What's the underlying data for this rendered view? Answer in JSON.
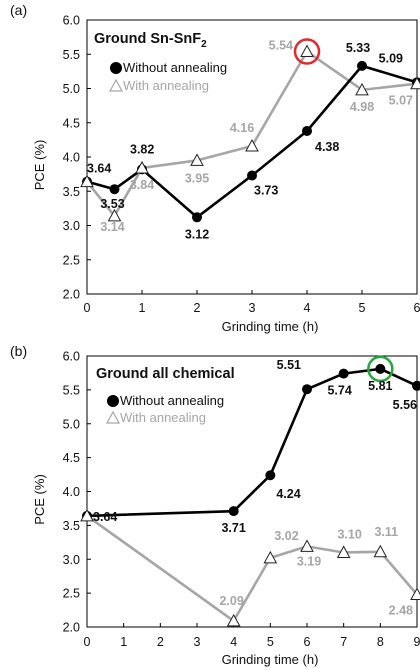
{
  "chart_data": [
    {
      "type": "line",
      "panel_label": "(a)",
      "title_main": "Ground Sn-SnF",
      "title_sub": "2",
      "xlabel": "Grinding time (h)",
      "ylabel": "PCE (%)",
      "xlim": [
        0,
        6
      ],
      "ylim": [
        2.0,
        6.0
      ],
      "xticks": [
        "0",
        "1",
        "2",
        "3",
        "4",
        "5",
        "6"
      ],
      "yticks": [
        "2.0",
        "2.5",
        "3.0",
        "3.5",
        "4.0",
        "4.5",
        "5.0",
        "5.5",
        "6.0"
      ],
      "legend_placement": "top-left",
      "series": [
        {
          "name": "Without annealing",
          "color": "#000000",
          "marker": "circle",
          "x": [
            0,
            0.5,
            1,
            2,
            3,
            4,
            5,
            6
          ],
          "values": [
            3.64,
            3.53,
            3.82,
            3.12,
            3.73,
            4.38,
            5.33,
            5.09
          ],
          "labels": [
            "3.64",
            "3.53",
            "3.82",
            "3.12",
            "3.73",
            "4.38",
            "5.33",
            "5.09"
          ]
        },
        {
          "name": "With annealing",
          "color": "#a6a6a6",
          "marker": "triangle",
          "x": [
            0,
            0.5,
            1,
            2,
            3,
            4,
            5,
            6
          ],
          "values": [
            3.64,
            3.14,
            3.84,
            3.95,
            4.16,
            5.54,
            4.98,
            5.07
          ],
          "labels": [
            "",
            "3.14",
            "3.84",
            "3.95",
            "4.16",
            "5.54",
            "4.98",
            "5.07"
          ]
        }
      ],
      "highlight": {
        "series": 1,
        "index": 5,
        "color": "#e8262b"
      }
    },
    {
      "type": "line",
      "panel_label": "(b)",
      "title_main": "Ground all chemical",
      "title_sub": "",
      "xlabel": "Grinding time (h)",
      "ylabel": "PCE (%)",
      "xlim": [
        0,
        9
      ],
      "ylim": [
        2.0,
        6.0
      ],
      "xticks": [
        "0",
        "1",
        "2",
        "3",
        "4",
        "5",
        "6",
        "7",
        "8",
        "9"
      ],
      "yticks": [
        "2.0",
        "2.5",
        "3.0",
        "3.5",
        "4.0",
        "4.5",
        "5.0",
        "5.5",
        "6.0"
      ],
      "legend_placement": "top-left",
      "series": [
        {
          "name": "Without annealing",
          "color": "#000000",
          "marker": "circle",
          "x": [
            0,
            4,
            5,
            6,
            7,
            8,
            9
          ],
          "values": [
            3.64,
            3.71,
            4.24,
            5.51,
            5.74,
            5.81,
            5.56
          ],
          "labels": [
            "3.64",
            "3.71",
            "4.24",
            "5.51",
            "5.74",
            "5.81",
            "5.56"
          ]
        },
        {
          "name": "With annealing",
          "color": "#a6a6a6",
          "marker": "triangle",
          "x": [
            0,
            4,
            5,
            6,
            7,
            8,
            9
          ],
          "values": [
            3.64,
            2.09,
            3.02,
            3.19,
            3.1,
            3.11,
            2.48
          ],
          "labels": [
            "",
            "2.09",
            "3.02",
            "3.19",
            "3.10",
            "3.11",
            "2.48"
          ]
        }
      ],
      "highlight": {
        "series": 0,
        "index": 5,
        "color": "#22a83a"
      }
    }
  ]
}
